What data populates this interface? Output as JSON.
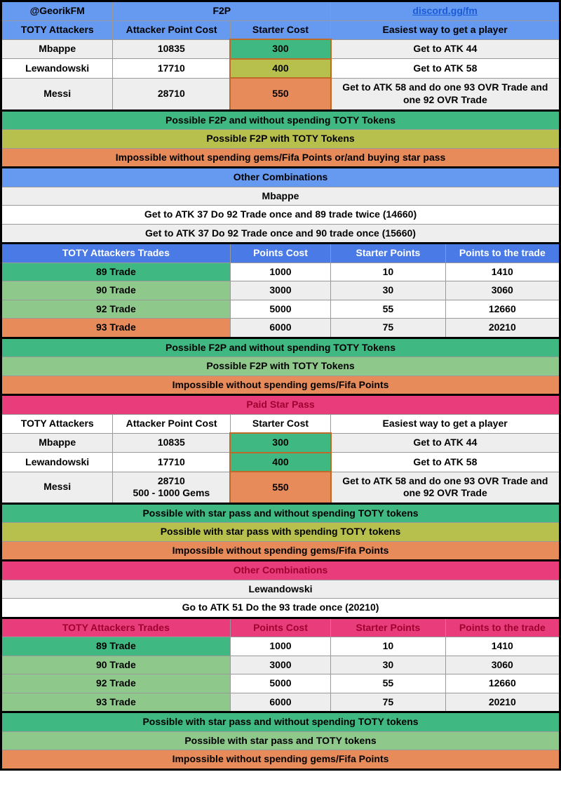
{
  "colors": {
    "blue_header": "#6699f0",
    "blue_sub": "#4a7ae6",
    "pink_header": "#e83d7a",
    "white": "#ffffff",
    "gray_row": "#eeeeee",
    "green_dark": "#3fb981",
    "green_med": "#8ec98b",
    "olive": "#b8c04d",
    "orange": "#e88b5a",
    "link": "#1a5bd6",
    "black": "#000000",
    "red_text": "#a00030"
  },
  "top": {
    "handle": "@GeorikFM",
    "title": "F2P",
    "discord": "discord.gg/fm",
    "h1": "TOTY Attackers",
    "h2": "Attacker Point Cost",
    "h3": "Starter Cost",
    "h4": "Easiest way to get a player"
  },
  "f2p_rows": [
    {
      "name": "Mbappe",
      "cost": "10835",
      "starter": "300",
      "starter_bg": "green_dark",
      "way": "Get to ATK 44",
      "row_bg": "gray_row"
    },
    {
      "name": "Lewandowski",
      "cost": "17710",
      "starter": "400",
      "starter_bg": "olive",
      "way": "Get to ATK 58",
      "row_bg": "white"
    },
    {
      "name": "Messi",
      "cost": "28710",
      "starter": "550",
      "starter_bg": "orange",
      "way": "Get to ATK 58 and do one 93 OVR Trade and one 92 OVR Trade",
      "row_bg": "gray_row"
    }
  ],
  "legend1": [
    {
      "text": "Possible F2P and without spending TOTY Tokens",
      "bg": "green_dark"
    },
    {
      "text": "Possible F2P with TOTY Tokens",
      "bg": "olive"
    },
    {
      "text": "Impossible without spending gems/Fifa Points or/and buying star pass",
      "bg": "orange"
    }
  ],
  "other1": {
    "title": "Other Combinations",
    "name": "Mbappe",
    "lines": [
      "Get to ATK 37 Do 92 Trade once and 89 trade twice (14660)",
      "Get to ATK 37 Do 92 Trade once and 90 trade once (15660)"
    ]
  },
  "trades_header": {
    "c1": "TOTY Attackers Trades",
    "c2": "Points Cost",
    "c3": "Starter Points",
    "c4": "Points to the trade"
  },
  "trades": [
    {
      "name": "89 Trade",
      "cost": "1000",
      "sp": "10",
      "ptt": "1410",
      "bg": "green_dark",
      "row": "white"
    },
    {
      "name": "90 Trade",
      "cost": "3000",
      "sp": "30",
      "ptt": "3060",
      "bg": "green_med",
      "row": "gray_row"
    },
    {
      "name": "92 Trade",
      "cost": "5000",
      "sp": "55",
      "ptt": "12660",
      "bg": "green_med",
      "row": "white"
    },
    {
      "name": "93 Trade",
      "cost": "6000",
      "sp": "75",
      "ptt": "20210",
      "bg": "orange",
      "row": "gray_row"
    }
  ],
  "legend2": [
    {
      "text": "Possible F2P and without spending TOTY Tokens",
      "bg": "green_dark"
    },
    {
      "text": "Possible F2P with TOTY Tokens",
      "bg": "green_med"
    },
    {
      "text": "Impossible without spending gems/Fifa Points",
      "bg": "orange"
    }
  ],
  "paid_title": "Paid Star Pass",
  "paid_rows": [
    {
      "name": "Mbappe",
      "cost": "10835",
      "starter": "300",
      "starter_bg": "green_dark",
      "way": "Get to ATK 44",
      "row_bg": "gray_row"
    },
    {
      "name": "Lewandowski",
      "cost": "17710",
      "starter": "400",
      "starter_bg": "green_dark",
      "way": "Get to ATK 58",
      "row_bg": "white"
    },
    {
      "name": "Messi",
      "cost": "28710\n500 - 1000 Gems",
      "starter": "550",
      "starter_bg": "orange",
      "way": "Get to ATK 58 and do one 93 OVR Trade and one 92 OVR Trade",
      "row_bg": "gray_row"
    }
  ],
  "legend3": [
    {
      "text": "Possible with star pass and without spending TOTY tokens",
      "bg": "green_dark"
    },
    {
      "text": "Possible with star pass with spending TOTY tokens",
      "bg": "olive"
    },
    {
      "text": "Impossible without spending gems/Fifa Points",
      "bg": "orange"
    }
  ],
  "other2": {
    "title": "Other Combinations",
    "name": "Lewandowski",
    "lines": [
      "Go to ATK 51 Do the 93 trade once (20210)"
    ]
  },
  "trades2": [
    {
      "name": "89 Trade",
      "cost": "1000",
      "sp": "10",
      "ptt": "1410",
      "bg": "green_dark",
      "row": "white"
    },
    {
      "name": "90 Trade",
      "cost": "3000",
      "sp": "30",
      "ptt": "3060",
      "bg": "green_med",
      "row": "gray_row"
    },
    {
      "name": "92 Trade",
      "cost": "5000",
      "sp": "55",
      "ptt": "12660",
      "bg": "green_med",
      "row": "white"
    },
    {
      "name": "93 Trade",
      "cost": "6000",
      "sp": "75",
      "ptt": "20210",
      "bg": "green_med",
      "row": "gray_row"
    }
  ],
  "legend4": [
    {
      "text": "Possible with star pass and without spending TOTY tokens",
      "bg": "green_dark"
    },
    {
      "text": "Possible with star pass and TOTY tokens",
      "bg": "green_med"
    },
    {
      "text": "Impossible without spending gems/Fifa Points",
      "bg": "orange"
    }
  ]
}
